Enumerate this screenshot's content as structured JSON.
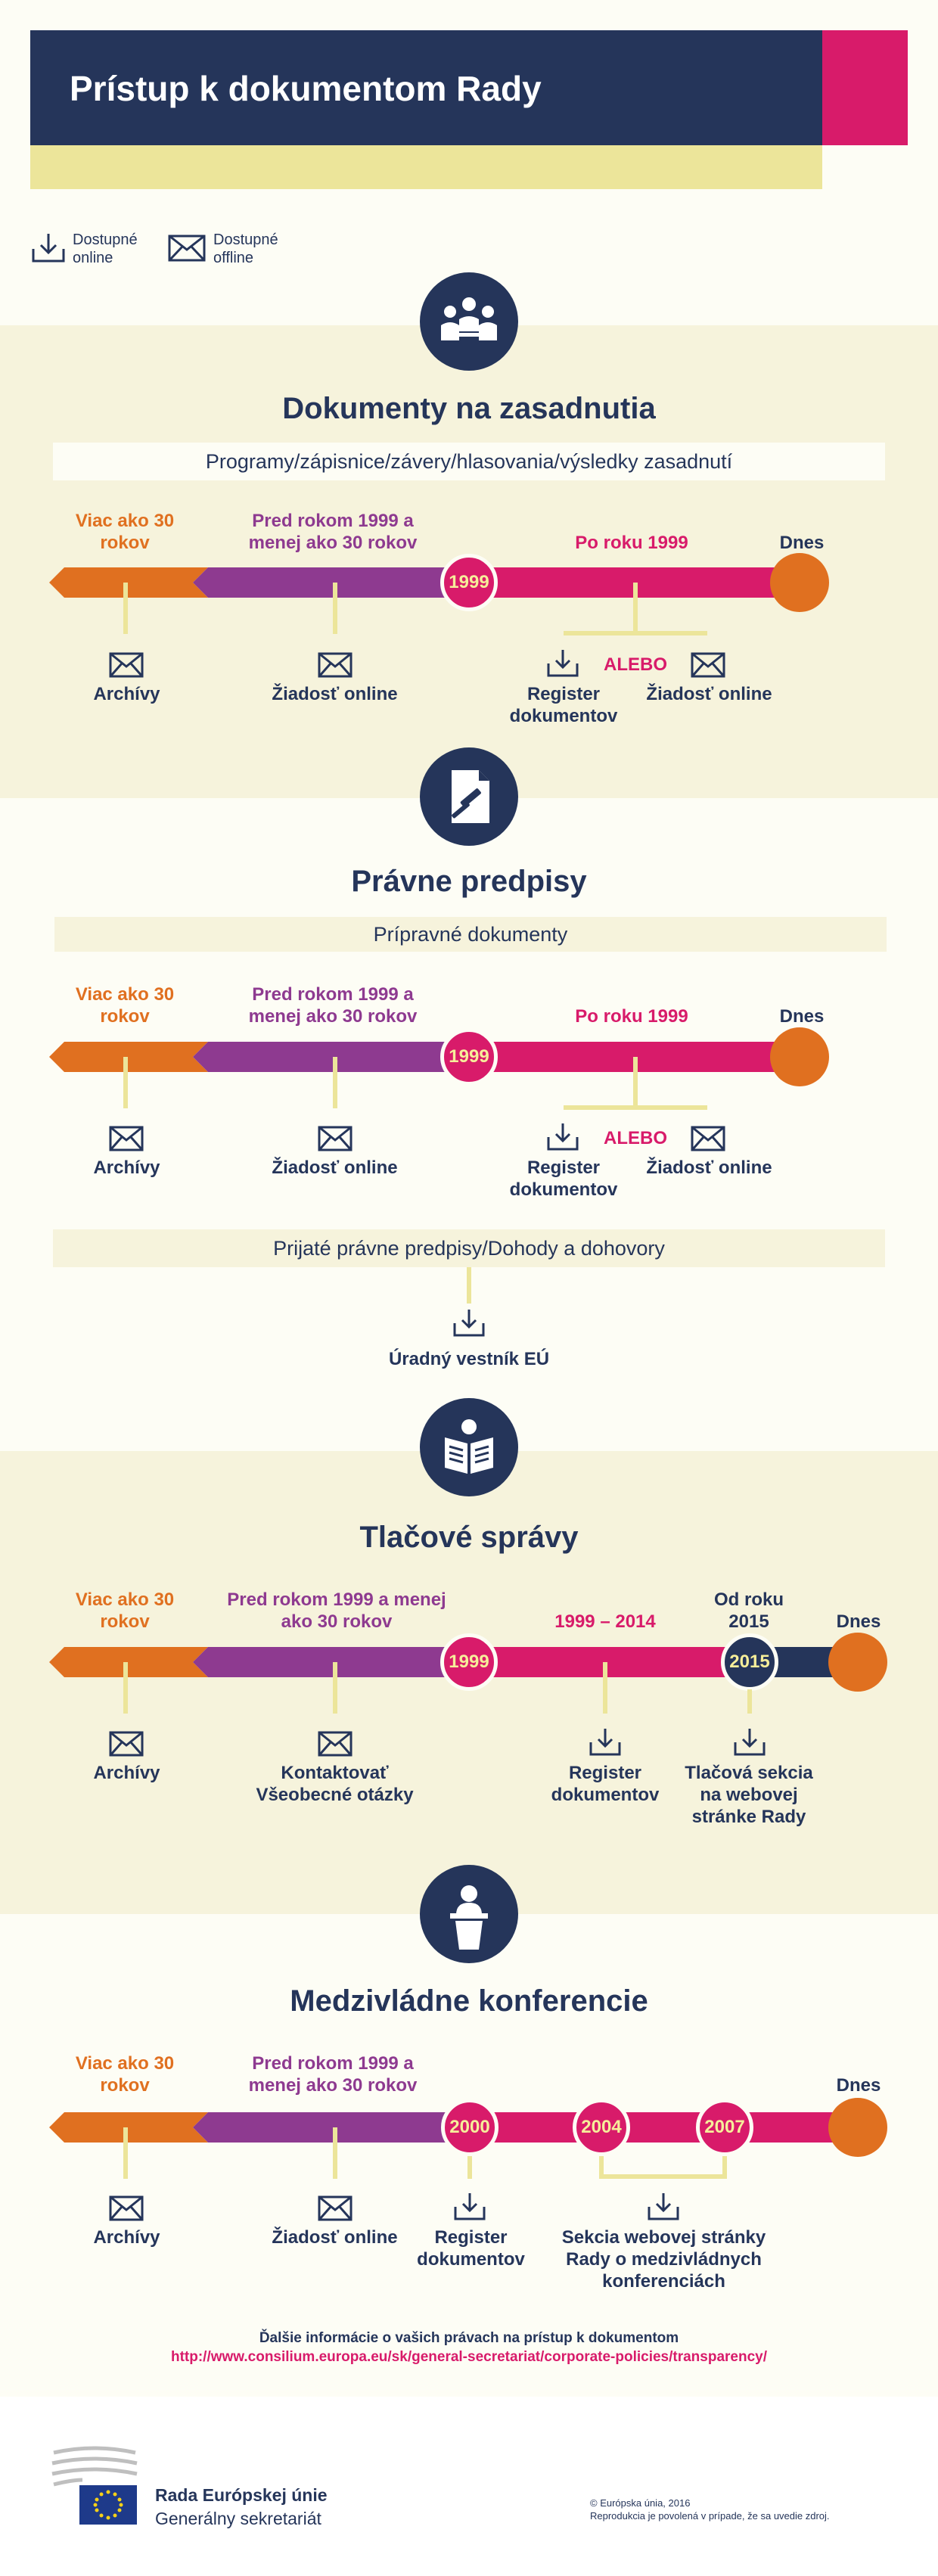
{
  "header": {
    "title": "Prístup k dokumentom Rady"
  },
  "legend": {
    "online_label_1": "Dostupné",
    "online_label_2": "online",
    "offline_label_1": "Dostupné",
    "offline_label_2": "offline"
  },
  "colors": {
    "navy": "#25355a",
    "pink": "#d81b6a",
    "yellow": "#ece59a",
    "orange": "#e07020",
    "purple": "#8e3a90"
  },
  "s1": {
    "title": "Dokumenty na zasadnutia",
    "subtitle": "Programy/zápisnice/závery/hlasovania/výsledky zasadnutí",
    "over30_1": "Viac ako 30",
    "over30_2": "rokov",
    "before1999_1": "Pred rokom 1999 a",
    "before1999_2": "menej ako 30 rokov",
    "year": "1999",
    "after1999": "Po roku 1999",
    "today": "Dnes",
    "archives": "Archívy",
    "request": "Žiadosť online",
    "register_1": "Register",
    "register_2": "dokumentov",
    "or": "ALEBO",
    "request2": "Žiadosť online"
  },
  "s2": {
    "title": "Právne predpisy",
    "subtitle": "Prípravné dokumenty",
    "over30_1": "Viac ako 30",
    "over30_2": "rokov",
    "before1999_1": "Pred rokom 1999 a",
    "before1999_2": "menej ako 30 rokov",
    "year": "1999",
    "after1999": "Po roku 1999",
    "today": "Dnes",
    "archives": "Archívy",
    "request": "Žiadosť online",
    "register_1": "Register",
    "register_2": "dokumentov",
    "or": "ALEBO",
    "request2": "Žiadosť online",
    "adopted": "Prijaté právne predpisy/Dohody a dohovory",
    "oj": "Úradný vestník EÚ"
  },
  "s3": {
    "title": "Tlačové správy",
    "over30_1": "Viac ako 30",
    "over30_2": "rokov",
    "before1999_1": "Pred rokom 1999 a menej",
    "before1999_2": "ako 30 rokov",
    "year1": "1999",
    "range": "1999 – 2014",
    "since_1": "Od roku",
    "since_2": "2015",
    "year2": "2015",
    "today": "Dnes",
    "archives": "Archívy",
    "contact_1": "Kontaktovať",
    "contact_2": "Všeobecné otázky",
    "register_1": "Register",
    "register_2": "dokumentov",
    "press_1": "Tlačová sekcia",
    "press_2": "na webovej",
    "press_3": "stránke Rady"
  },
  "s4": {
    "title": "Medzivládne konferencie",
    "over30_1": "Viac ako 30",
    "over30_2": "rokov",
    "before1999_1": "Pred rokom 1999 a",
    "before1999_2": "menej ako 30 rokov",
    "year1": "2000",
    "year2": "2004",
    "year3": "2007",
    "today": "Dnes",
    "archives": "Archívy",
    "request": "Žiadosť online",
    "register_1": "Register",
    "register_2": "dokumentov",
    "igc_1": "Sekcia webovej stránky",
    "igc_2": "Rady o medzivládnych",
    "igc_3": "konferenciách"
  },
  "footer": {
    "more_info": "Ďalšie informácie o vašich právach na prístup k dokumentom",
    "link": "http://www.consilium.europa.eu/sk/general-secretariat/corporate-policies/transparency/",
    "org_1": "Rada Európskej únie",
    "org_2": "Generálny sekretariát",
    "copyright_1": "© Európska únia, 2016",
    "copyright_2": "Reprodukcia je povolená v prípade, že sa uvedie zdroj."
  }
}
